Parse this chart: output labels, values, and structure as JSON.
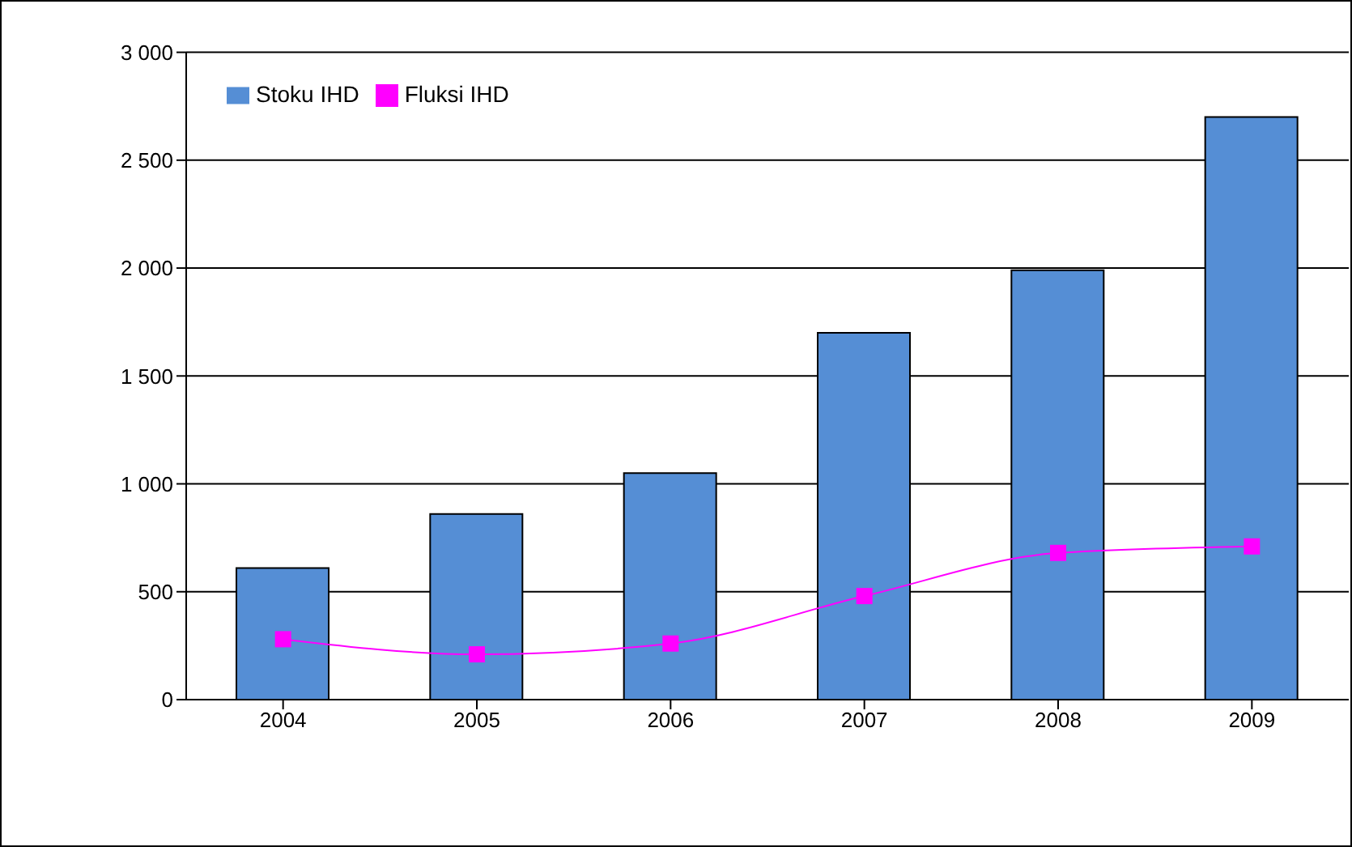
{
  "chart_data": {
    "type": "bar",
    "categories": [
      "2004",
      "2005",
      "2006",
      "2007",
      "2008",
      "2009"
    ],
    "series": [
      {
        "name": "Stoku IHD",
        "color": "#558ed5",
        "values": [
          610,
          860,
          1050,
          1700,
          1990,
          2700
        ]
      },
      {
        "name": "Fluksi IHD",
        "type": "line",
        "color": "#ff00ff",
        "marker": "square",
        "values": [
          280,
          210,
          260,
          480,
          680,
          710
        ]
      }
    ],
    "ylim": [
      0,
      3000
    ],
    "yticks": [
      0,
      500,
      {
        "value": 1000,
        "label": "1 000"
      },
      {
        "value": 1500,
        "label": "1 500"
      },
      {
        "value": 2000,
        "label": "2 000"
      },
      {
        "value": 2500,
        "label": "2 500"
      },
      {
        "value": 3000,
        "label": "3 000"
      }
    ],
    "grid": "y",
    "legend": "top left"
  }
}
